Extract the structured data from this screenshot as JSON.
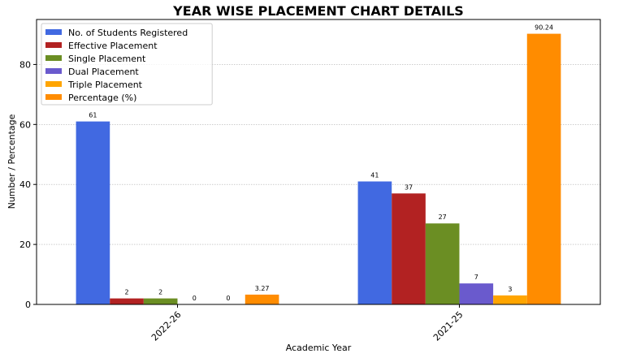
{
  "chart_data": {
    "type": "bar",
    "title": "YEAR WISE PLACEMENT CHART DETAILS",
    "xlabel": "Academic Year",
    "ylabel": "Number / Percentage",
    "categories": [
      "2022-26",
      "2021-25"
    ],
    "ylim": [
      0,
      95
    ],
    "yticks": [
      0,
      20,
      40,
      60,
      80
    ],
    "grid": "y-dotted",
    "legend_position": "top-left",
    "series": [
      {
        "name": "No. of Students Registered",
        "color": "#4169E1",
        "values": [
          61,
          41
        ],
        "labels": [
          "61",
          "41"
        ]
      },
      {
        "name": "Effective Placement",
        "color": "#B22222",
        "values": [
          2,
          37
        ],
        "labels": [
          "2",
          "37"
        ]
      },
      {
        "name": "Single Placement",
        "color": "#6B8E23",
        "values": [
          2,
          27
        ],
        "labels": [
          "2",
          "27"
        ]
      },
      {
        "name": "Dual Placement",
        "color": "#6A5ACD",
        "values": [
          0,
          7
        ],
        "labels": [
          "0",
          "7"
        ]
      },
      {
        "name": "Triple Placement",
        "color": "#FFA500",
        "values": [
          0,
          3
        ],
        "labels": [
          "0",
          "3"
        ]
      },
      {
        "name": "Percentage (%)",
        "color": "#FF8C00",
        "values": [
          3.27,
          90.24
        ],
        "labels": [
          "3.27",
          "90.24"
        ]
      }
    ]
  }
}
